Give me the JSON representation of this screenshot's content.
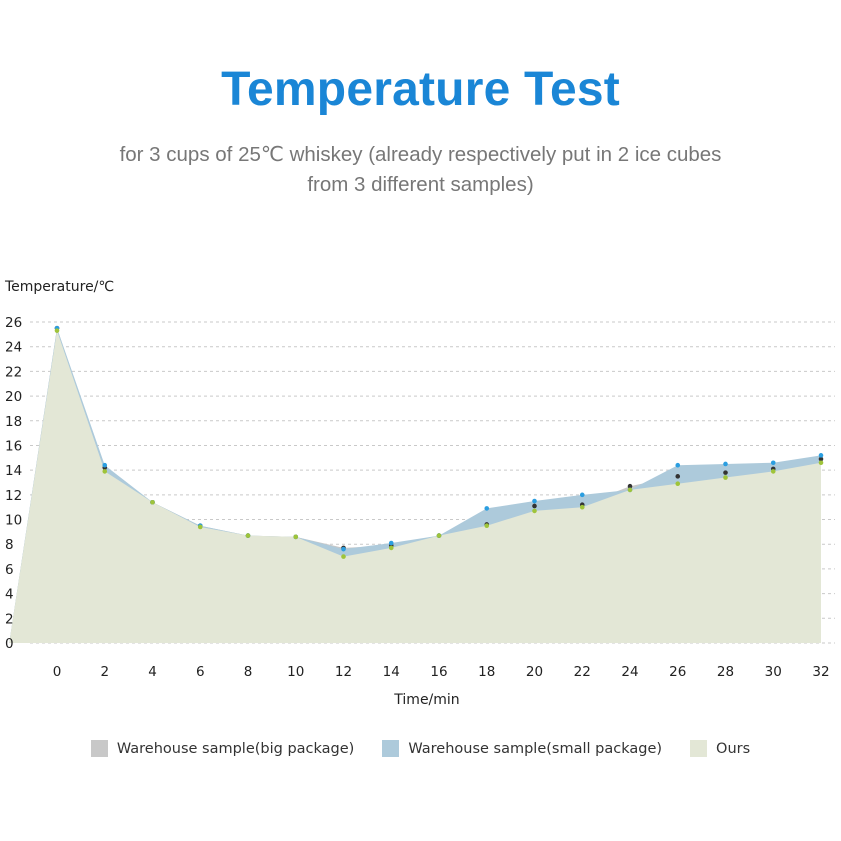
{
  "header": {
    "title": "Temperature Test",
    "subtitle_line1": "for 3 cups of 25℃ whiskey (already respectively put in 2 ice cubes",
    "subtitle_line2": "from 3 different samples)"
  },
  "colors": {
    "title": "#1a86d6",
    "big_fill": "#c8c8c8",
    "small_fill": "#adcadb",
    "ours_fill": "#e3e7d6",
    "big_dot": "#333333",
    "small_dot": "#2b9ee0",
    "ours_dot": "#9fc43a"
  },
  "chart_data": {
    "type": "area",
    "title": "Temperature Test",
    "xlabel": "Time/min",
    "ylabel": "Temperature/℃",
    "ylim": [
      0,
      26
    ],
    "xlim": [
      -2,
      32
    ],
    "yticks": [
      0,
      2,
      4,
      6,
      8,
      10,
      12,
      14,
      16,
      18,
      20,
      22,
      24,
      26
    ],
    "xticks": [
      0,
      2,
      4,
      6,
      8,
      10,
      12,
      14,
      16,
      18,
      20,
      22,
      24,
      26,
      28,
      30,
      32
    ],
    "grid": "horizontal dashed",
    "legend_position": "bottom",
    "series": [
      {
        "name": "Warehouse sample(big package)",
        "x": [
          0,
          2,
          4,
          6,
          8,
          10,
          12,
          14,
          16,
          18,
          20,
          22,
          24,
          26,
          28,
          30,
          32
        ],
        "values": [
          25.5,
          14.2,
          11.4,
          9.5,
          8.7,
          8.6,
          7.7,
          7.9,
          8.7,
          9.6,
          11.1,
          11.2,
          12.7,
          13.5,
          13.8,
          14.1,
          14.9
        ]
      },
      {
        "name": "Warehouse sample(small package)",
        "x": [
          0,
          2,
          4,
          6,
          8,
          10,
          12,
          14,
          16,
          18,
          20,
          22,
          24,
          26,
          28,
          30,
          32
        ],
        "values": [
          25.5,
          14.4,
          11.4,
          9.5,
          8.7,
          8.6,
          7.6,
          8.1,
          8.7,
          10.9,
          11.5,
          12.0,
          12.4,
          14.4,
          14.5,
          14.6,
          15.2
        ]
      },
      {
        "name": "Ours",
        "x": [
          0,
          2,
          4,
          6,
          8,
          10,
          12,
          14,
          16,
          18,
          20,
          22,
          24,
          26,
          28,
          30,
          32
        ],
        "values": [
          25.3,
          13.9,
          11.4,
          9.4,
          8.7,
          8.6,
          7.0,
          7.7,
          8.7,
          9.5,
          10.7,
          11.0,
          12.4,
          12.9,
          13.4,
          13.9,
          14.6
        ]
      }
    ]
  }
}
